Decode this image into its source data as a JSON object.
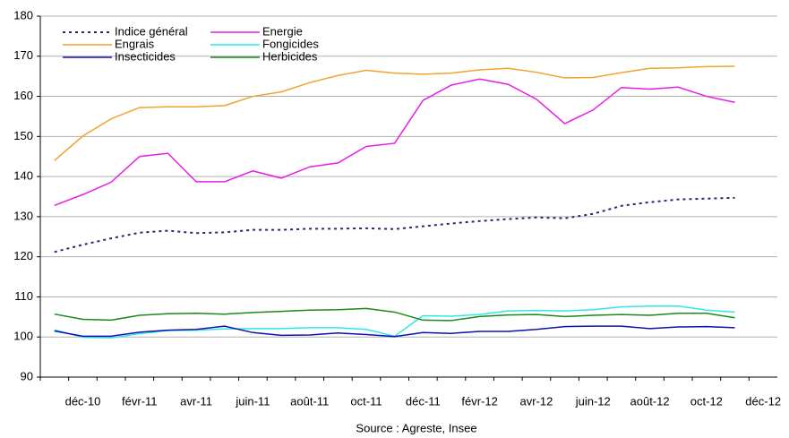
{
  "chart_data": {
    "type": "line",
    "categories": [
      null,
      "déc-10",
      null,
      "févr-11",
      null,
      "avr-11",
      null,
      "juin-11",
      null,
      "août-11",
      null,
      "oct-11",
      null,
      "déc-11",
      null,
      "févr-12",
      null,
      "avr-12",
      null,
      "juin-12",
      null,
      "août-12",
      null,
      "oct-12",
      null,
      "déc-12"
    ],
    "series": [
      {
        "name": "Indice général",
        "color": "#1f2a7a",
        "dashed": true,
        "values": [
          121.2,
          123,
          124.6,
          126,
          126.5,
          125.9,
          126.1,
          126.7,
          126.7,
          127,
          127,
          127.1,
          126.9,
          127.6,
          128.3,
          128.9,
          129.4,
          129.8,
          129.6,
          130.7,
          132.7,
          133.6,
          134.3,
          134.5,
          134.7,
          null
        ]
      },
      {
        "name": "Energie",
        "color": "#e61ee6",
        "values": [
          132.8,
          135.5,
          138.6,
          145,
          145.8,
          138.7,
          138.7,
          141.4,
          139.6,
          142.4,
          143.4,
          147.5,
          148.3,
          159,
          162.8,
          164.3,
          163,
          159.3,
          153.2,
          156.6,
          162.2,
          161.8,
          162.3,
          160,
          158.5,
          null
        ]
      },
      {
        "name": "Engrais",
        "color": "#f2a230",
        "values": [
          144,
          150.1,
          154.4,
          157.2,
          157.4,
          157.4,
          157.7,
          160,
          161.1,
          163.4,
          165.2,
          166.5,
          165.8,
          165.5,
          165.8,
          166.6,
          167,
          166,
          164.6,
          164.7,
          165.9,
          167,
          167.1,
          167.4,
          167.5,
          null
        ]
      },
      {
        "name": "Fongicides",
        "color": "#33e6e6",
        "values": [
          101.8,
          99.9,
          99.8,
          100.8,
          101.6,
          101.7,
          102,
          102.1,
          102.1,
          102.3,
          102.3,
          101.9,
          100.2,
          105.3,
          105.2,
          105.6,
          106.5,
          106.6,
          106.5,
          106.8,
          107.5,
          107.7,
          107.7,
          106.7,
          106.2,
          null
        ]
      },
      {
        "name": "Insecticides",
        "color": "#1010b0",
        "values": [
          101.5,
          100.2,
          100.2,
          101.2,
          101.7,
          101.9,
          102.7,
          101.1,
          100.4,
          100.5,
          101,
          100.6,
          100.1,
          101.1,
          100.9,
          101.4,
          101.4,
          101.9,
          102.6,
          102.7,
          102.7,
          102.1,
          102.5,
          102.6,
          102.3,
          null
        ]
      },
      {
        "name": "Herbicides",
        "color": "#1a8a1a",
        "values": [
          105.7,
          104.4,
          104.2,
          105.4,
          105.8,
          105.9,
          105.7,
          106.1,
          106.4,
          106.7,
          106.8,
          107.1,
          106.2,
          104.2,
          104.1,
          105.1,
          105.5,
          105.6,
          105.1,
          105.4,
          105.6,
          105.4,
          105.9,
          105.9,
          104.8,
          null
        ]
      }
    ],
    "ylim": [
      90,
      180
    ],
    "yticks": [
      90,
      100,
      110,
      120,
      130,
      140,
      150,
      160,
      170,
      180
    ],
    "grid": true,
    "legend": "top-left",
    "source": "Source : Agreste, Insee"
  }
}
